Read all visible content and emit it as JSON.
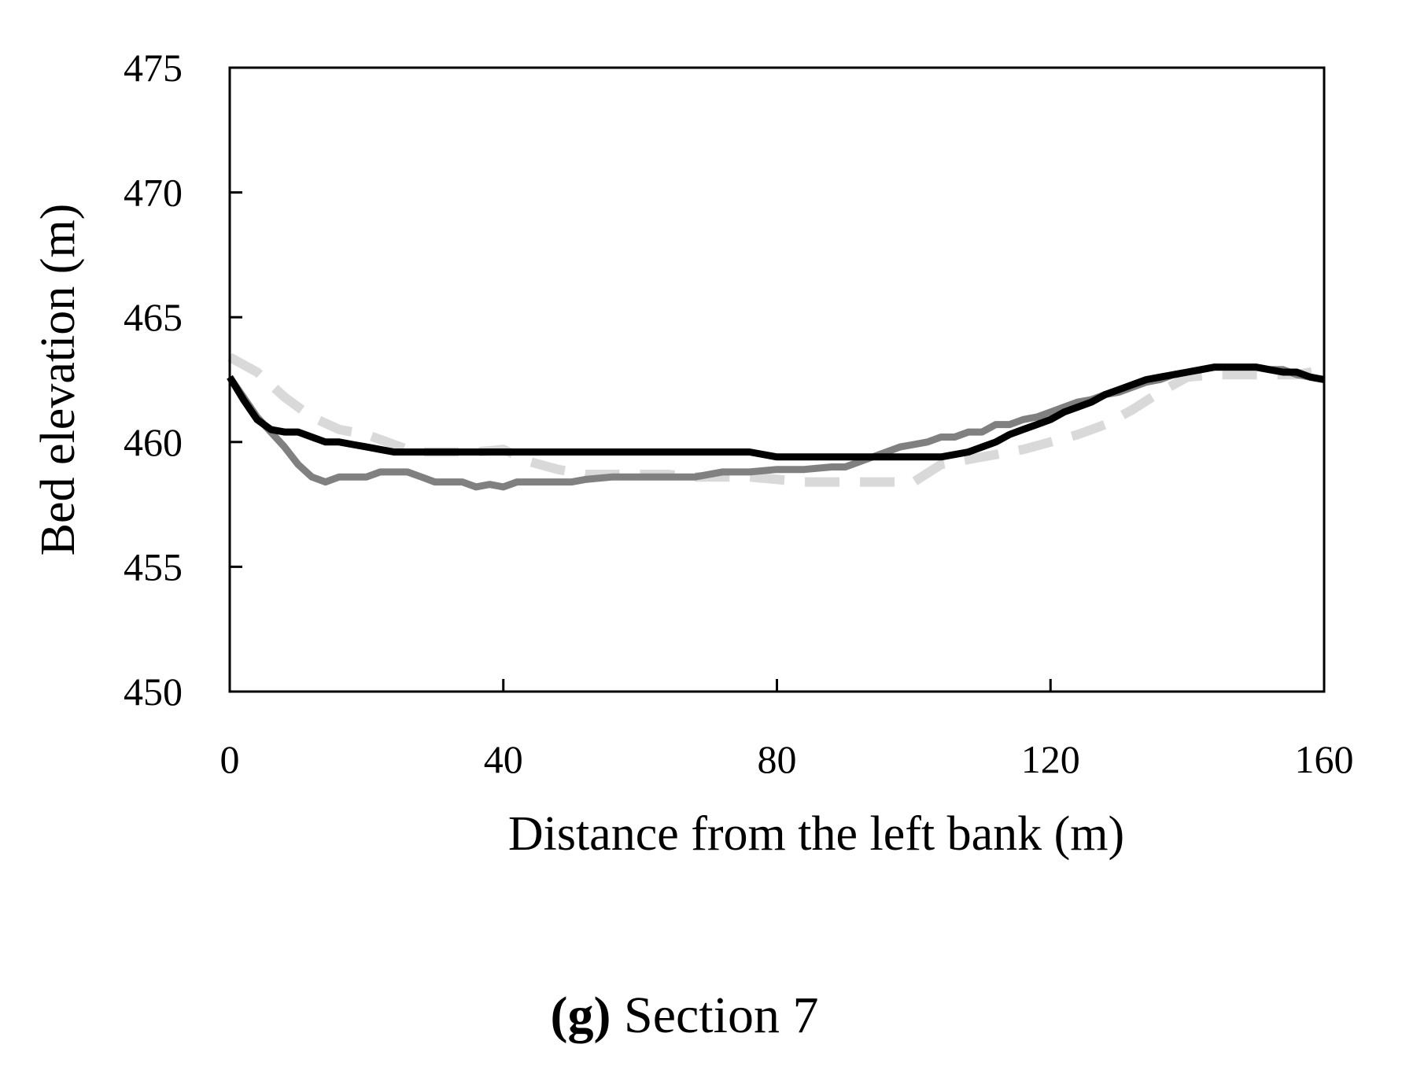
{
  "chart_data": {
    "type": "line",
    "title": "",
    "xlabel": "Distance from the left bank (m)",
    "ylabel": "Bed elevation (m)",
    "xlim": [
      0,
      160
    ],
    "ylim": [
      450,
      475
    ],
    "xticks": [
      0,
      40,
      80,
      120,
      160
    ],
    "yticks": [
      450,
      455,
      460,
      465,
      470,
      475
    ],
    "x_tick_labels": [
      "0",
      "40",
      "80",
      "120",
      "160"
    ],
    "y_tick_labels": [
      "450",
      "455",
      "460",
      "465",
      "470",
      "475"
    ],
    "grid": false,
    "legend": "none",
    "series": [
      {
        "color": "#000000",
        "style": "solid",
        "x": [
          0,
          2,
          4,
          6,
          8,
          10,
          12,
          14,
          16,
          18,
          20,
          22,
          24,
          30,
          40,
          50,
          60,
          70,
          76,
          80,
          84,
          90,
          96,
          100,
          104,
          106,
          108,
          110,
          112,
          114,
          116,
          118,
          120,
          122,
          124,
          126,
          128,
          130,
          132,
          134,
          136,
          138,
          140,
          142,
          144,
          146,
          148,
          150,
          152,
          154,
          156,
          158,
          160
        ],
        "values": [
          462.6,
          461.7,
          460.9,
          460.5,
          460.4,
          460.4,
          460.2,
          460.0,
          460.0,
          459.9,
          459.8,
          459.7,
          459.6,
          459.6,
          459.6,
          459.6,
          459.6,
          459.6,
          459.6,
          459.4,
          459.4,
          459.4,
          459.4,
          459.4,
          459.4,
          459.5,
          459.6,
          459.8,
          460.0,
          460.3,
          460.5,
          460.7,
          460.9,
          461.2,
          461.4,
          461.6,
          461.9,
          462.1,
          462.3,
          462.5,
          462.6,
          462.7,
          462.8,
          462.9,
          463.0,
          463.0,
          463.0,
          463.0,
          462.9,
          462.8,
          462.8,
          462.6,
          462.5
        ]
      },
      {
        "color": "#808080",
        "style": "solid",
        "x": [
          0,
          2,
          4,
          6,
          8,
          10,
          12,
          14,
          16,
          18,
          20,
          22,
          24,
          26,
          28,
          30,
          32,
          34,
          36,
          38,
          40,
          42,
          44,
          46,
          48,
          50,
          52,
          56,
          60,
          64,
          68,
          72,
          76,
          80,
          84,
          88,
          90,
          92,
          94,
          96,
          98,
          100,
          102,
          104,
          106,
          108,
          110,
          112,
          114,
          116,
          118,
          120,
          122,
          124,
          126,
          128,
          130,
          132,
          134,
          136,
          138,
          140,
          142,
          144,
          146,
          148,
          150,
          152,
          154,
          156,
          158,
          160
        ],
        "values": [
          462.6,
          461.8,
          461.0,
          460.4,
          459.8,
          459.1,
          458.6,
          458.4,
          458.6,
          458.6,
          458.6,
          458.8,
          458.8,
          458.8,
          458.6,
          458.4,
          458.4,
          458.4,
          458.2,
          458.3,
          458.2,
          458.4,
          458.4,
          458.4,
          458.4,
          458.4,
          458.5,
          458.6,
          458.6,
          458.6,
          458.6,
          458.8,
          458.8,
          458.9,
          458.9,
          459.0,
          459.0,
          459.2,
          459.4,
          459.6,
          459.8,
          459.9,
          460.0,
          460.2,
          460.2,
          460.4,
          460.4,
          460.7,
          460.7,
          460.9,
          461.0,
          461.2,
          461.4,
          461.6,
          461.7,
          461.9,
          462.0,
          462.2,
          462.4,
          462.5,
          462.7,
          462.8,
          462.9,
          463.0,
          463.0,
          463.0,
          463.0,
          462.9,
          462.9,
          462.7,
          462.6,
          462.5
        ]
      },
      {
        "color": "#d9d9d9",
        "style": "dashed",
        "x": [
          0,
          4,
          8,
          12,
          16,
          20,
          24,
          26,
          28,
          32,
          36,
          40,
          44,
          48,
          52,
          56,
          60,
          64,
          68,
          72,
          76,
          80,
          84,
          88,
          92,
          96,
          100,
          104,
          108,
          112,
          116,
          120,
          124,
          128,
          132,
          136,
          140,
          144,
          148,
          152,
          156,
          160
        ],
        "values": [
          463.4,
          462.8,
          461.8,
          461.0,
          460.5,
          460.3,
          459.9,
          459.7,
          459.6,
          459.6,
          459.6,
          459.7,
          459.2,
          458.9,
          458.7,
          458.7,
          458.7,
          458.7,
          458.6,
          458.6,
          458.6,
          458.5,
          458.4,
          458.4,
          458.4,
          458.4,
          458.4,
          459.1,
          459.3,
          459.5,
          459.7,
          460.0,
          460.3,
          460.7,
          461.3,
          462.0,
          462.6,
          462.7,
          462.7,
          462.7,
          462.7,
          462.9
        ]
      }
    ]
  },
  "caption": {
    "letter": "(g)",
    "text": " Section 7"
  }
}
